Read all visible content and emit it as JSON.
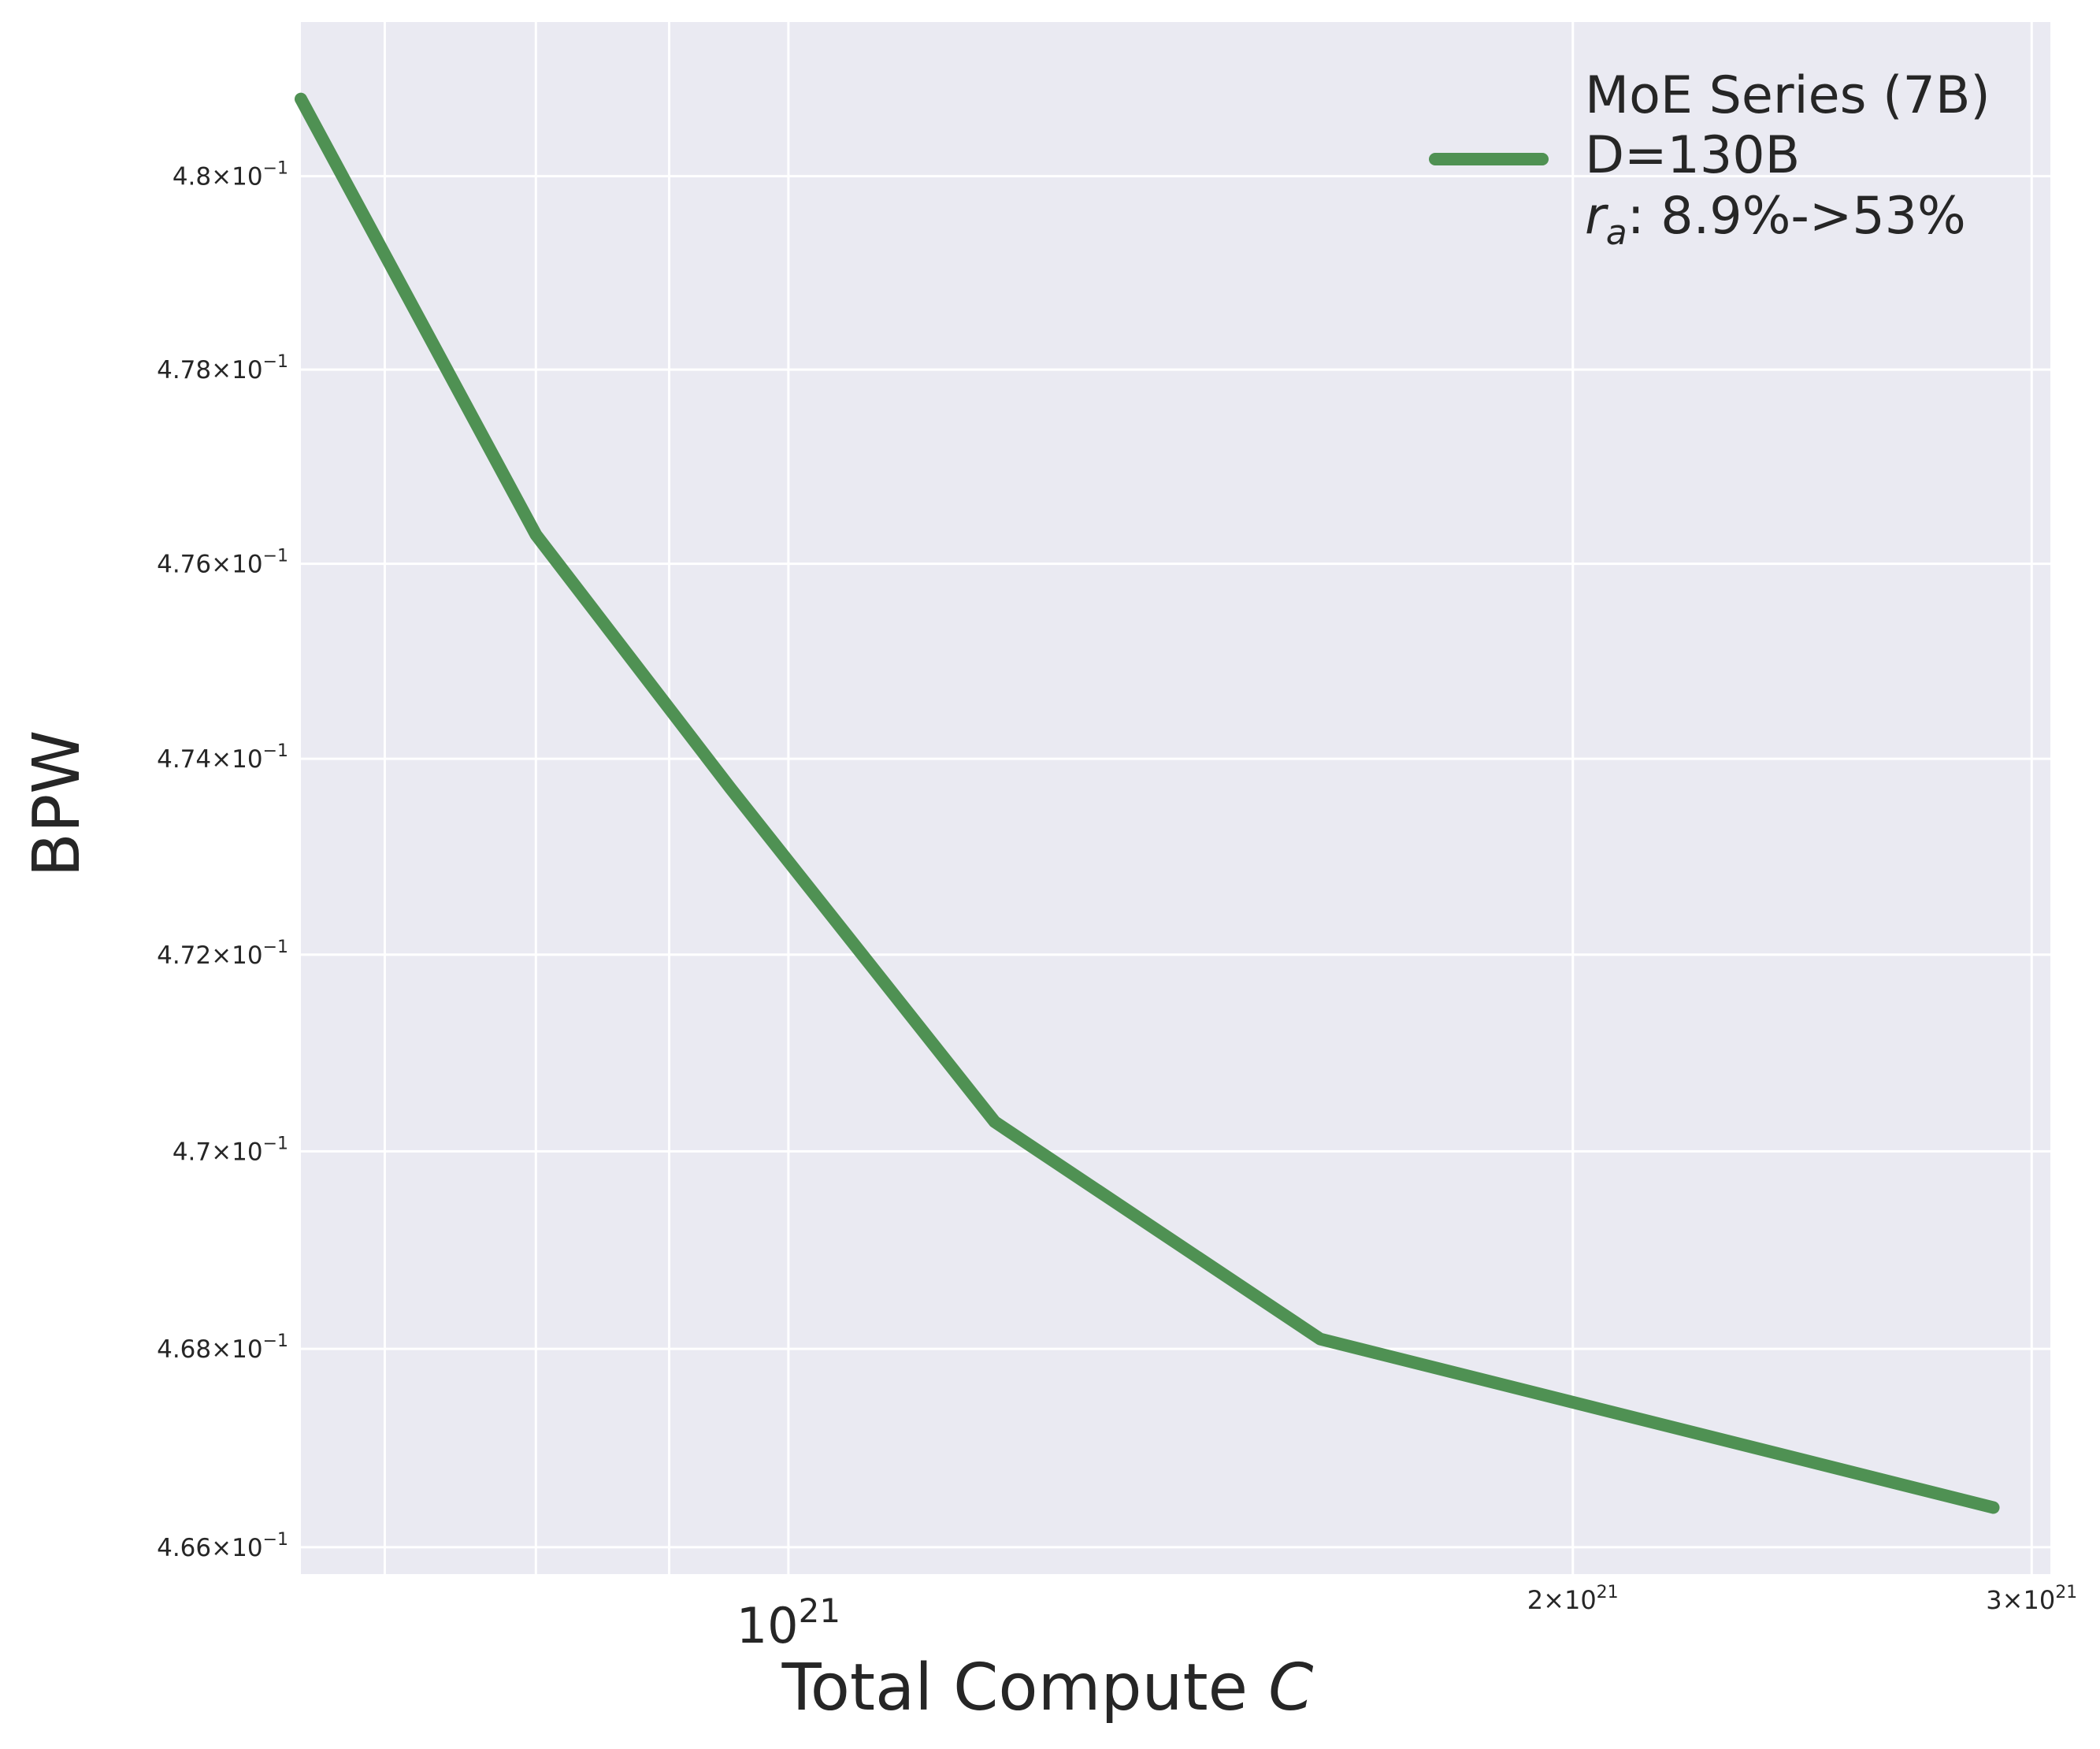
{
  "chart_data": {
    "type": "line",
    "xlabel": "Total Compute",
    "xlabel_var": "C",
    "ylabel": "BPW",
    "x_scale": "log",
    "y_scale": "log",
    "xlim": [
      6.5e+20,
      3.05e+21
    ],
    "ylim": [
      0.46573,
      0.4816
    ],
    "grid": true,
    "legend_position": "top-right",
    "colors": {
      "background": "#eaeaf2",
      "grid": "#ffffff",
      "series": "#4f9153",
      "text": "#262626"
    },
    "x_ticks_major": [
      {
        "value": 1e+21,
        "mantissa": "",
        "base": "10",
        "exp": "21"
      }
    ],
    "x_ticks_minor": [
      {
        "value": 2e+21,
        "mantissa": "2",
        "base": "10",
        "exp": "21"
      },
      {
        "value": 3e+21,
        "mantissa": "3",
        "base": "10",
        "exp": "21"
      }
    ],
    "x_minor_gridlines": [
      6e+20,
      7e+20,
      8e+20,
      9e+20,
      1e+21,
      2e+21,
      3e+21
    ],
    "y_ticks": [
      {
        "value": 0.466,
        "mantissa": "4.66",
        "base": "10",
        "exp": "−1"
      },
      {
        "value": 0.468,
        "mantissa": "4.68",
        "base": "10",
        "exp": "−1"
      },
      {
        "value": 0.47,
        "mantissa": "4.7",
        "base": "10",
        "exp": "−1"
      },
      {
        "value": 0.472,
        "mantissa": "4.72",
        "base": "10",
        "exp": "−1"
      },
      {
        "value": 0.474,
        "mantissa": "4.74",
        "base": "10",
        "exp": "−1"
      },
      {
        "value": 0.476,
        "mantissa": "4.76",
        "base": "10",
        "exp": "−1"
      },
      {
        "value": 0.478,
        "mantissa": "4.78",
        "base": "10",
        "exp": "−1"
      },
      {
        "value": 0.48,
        "mantissa": "4.8",
        "base": "10",
        "exp": "−1"
      }
    ],
    "series": [
      {
        "name_lines": [
          "MoE Series (7B)",
          "D=130B"
        ],
        "name_ratio_symbol": "r",
        "name_ratio_sub": "a",
        "name_ratio_text": ": 8.9%->53%",
        "x": [
          6.5e+20,
          8e+20,
          9.5e+20,
          1.2e+21,
          1.6e+21,
          2.9e+21
        ],
        "y": [
          0.4808,
          0.4763,
          0.4737,
          0.4703,
          0.4681,
          0.4664
        ]
      }
    ]
  }
}
